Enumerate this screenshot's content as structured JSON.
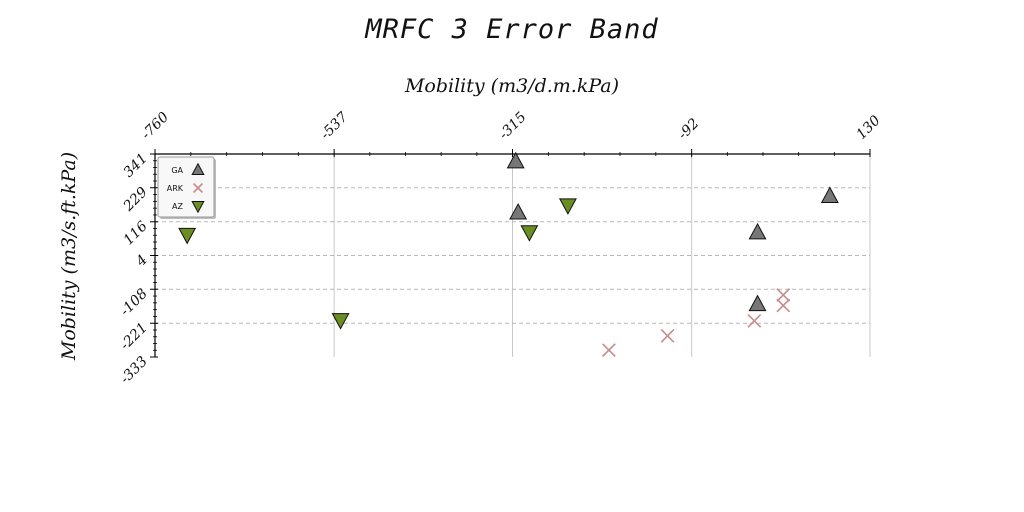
{
  "chart_data": {
    "type": "scatter",
    "title": "MRFC 3 Error Band",
    "xlabel": "Mobility (m3/d.m.kPa)",
    "ylabel": "Mobility (m3/s.ft.kPa)",
    "xlim": [
      -760,
      130
    ],
    "ylim": [
      -333,
      341
    ],
    "xticks": [
      -760,
      -537,
      -315,
      -92,
      130
    ],
    "xtick_labels": [
      "-760",
      "-537",
      "-315",
      "-92",
      "130"
    ],
    "yticks": [
      -333,
      -221,
      -108,
      4,
      116,
      229,
      341
    ],
    "ytick_labels": [
      "-333",
      "-221",
      "-108",
      "4",
      "116",
      "229",
      "341"
    ],
    "x_axis_position": "top",
    "grid": true,
    "legend_position": "top-left",
    "series": [
      {
        "name": "GA",
        "marker": "triangle-up",
        "color": "#777777",
        "points": [
          [
            -311,
            316
          ],
          [
            -308,
            146
          ],
          [
            -10,
            80
          ],
          [
            80,
            201
          ],
          [
            -10,
            -158
          ]
        ]
      },
      {
        "name": "ARK",
        "marker": "x",
        "color": "#c98b8b",
        "points": [
          [
            -195,
            -310
          ],
          [
            -122,
            -263
          ],
          [
            -14,
            -213
          ],
          [
            22,
            -127
          ],
          [
            22,
            -162
          ]
        ]
      },
      {
        "name": "AZ",
        "marker": "triangle-down",
        "color": "#6b8e23",
        "points": [
          [
            -720,
            73
          ],
          [
            -529,
            -210
          ],
          [
            -294,
            82
          ],
          [
            -246,
            171
          ]
        ]
      }
    ]
  }
}
